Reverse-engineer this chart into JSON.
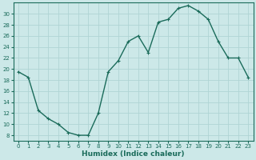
{
  "x": [
    0,
    1,
    2,
    3,
    4,
    5,
    6,
    7,
    8,
    9,
    10,
    11,
    12,
    13,
    14,
    15,
    16,
    17,
    18,
    19,
    20,
    21,
    22,
    23
  ],
  "y": [
    19.5,
    18.5,
    12.5,
    11.0,
    10.0,
    8.5,
    8.0,
    8.0,
    12.0,
    19.5,
    21.5,
    25.0,
    26.0,
    23.0,
    28.5,
    29.0,
    31.0,
    31.5,
    30.5,
    29.0,
    25.0,
    22.0,
    22.0,
    18.5
  ],
  "line_color": "#1a6b5a",
  "marker": "+",
  "marker_size": 3,
  "bg_color": "#cce8e8",
  "grid_color": "#b0d4d4",
  "xlabel": "Humidex (Indice chaleur)",
  "xlim": [
    -0.5,
    23.5
  ],
  "ylim": [
    7,
    32
  ],
  "yticks": [
    8,
    10,
    12,
    14,
    16,
    18,
    20,
    22,
    24,
    26,
    28,
    30
  ],
  "xticks": [
    0,
    1,
    2,
    3,
    4,
    5,
    6,
    7,
    8,
    9,
    10,
    11,
    12,
    13,
    14,
    15,
    16,
    17,
    18,
    19,
    20,
    21,
    22,
    23
  ],
  "tick_label_fontsize": 5.0,
  "xlabel_fontsize": 6.5,
  "line_width": 1.0,
  "marker_edge_width": 0.8
}
